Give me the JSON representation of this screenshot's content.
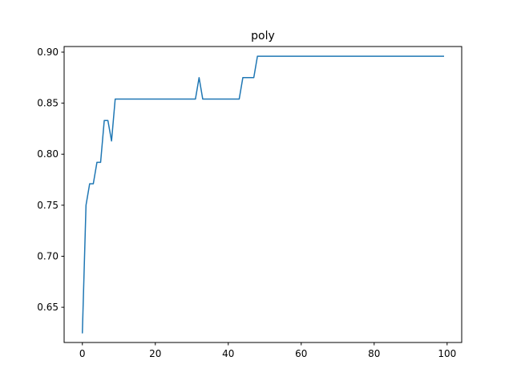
{
  "chart_data": {
    "type": "line",
    "title": "poly",
    "xlabel": "",
    "ylabel": "",
    "xlim": [
      -5,
      104
    ],
    "ylim": [
      0.6155,
      0.9055
    ],
    "xticks": [
      0,
      20,
      40,
      60,
      80,
      100
    ],
    "yticks": [
      0.65,
      0.7,
      0.75,
      0.8,
      0.85,
      0.9
    ],
    "xtick_labels": [
      "0",
      "20",
      "40",
      "60",
      "80",
      "100"
    ],
    "ytick_labels": [
      "0.65",
      "0.70",
      "0.75",
      "0.80",
      "0.85",
      "0.90"
    ],
    "grid": false,
    "series": [
      {
        "color": "#1f77b4",
        "x": [
          0,
          1,
          2,
          3,
          4,
          5,
          6,
          7,
          8,
          9,
          10,
          11,
          12,
          13,
          14,
          15,
          16,
          17,
          18,
          19,
          20,
          21,
          22,
          23,
          24,
          25,
          26,
          27,
          28,
          29,
          30,
          31,
          32,
          33,
          34,
          35,
          36,
          37,
          38,
          39,
          40,
          41,
          42,
          43,
          44,
          45,
          46,
          47,
          48,
          49,
          50,
          51,
          52,
          53,
          54,
          55,
          56,
          57,
          58,
          59,
          60,
          61,
          62,
          63,
          64,
          65,
          66,
          67,
          68,
          69,
          70,
          71,
          72,
          73,
          74,
          75,
          76,
          77,
          78,
          79,
          80,
          81,
          82,
          83,
          84,
          85,
          86,
          87,
          88,
          89,
          90,
          91,
          92,
          93,
          94,
          95,
          96,
          97,
          98,
          99
        ],
        "y": [
          0.625,
          0.75,
          0.771,
          0.771,
          0.792,
          0.792,
          0.833,
          0.833,
          0.813,
          0.854,
          0.854,
          0.854,
          0.854,
          0.854,
          0.854,
          0.854,
          0.854,
          0.854,
          0.854,
          0.854,
          0.854,
          0.854,
          0.854,
          0.854,
          0.854,
          0.854,
          0.854,
          0.854,
          0.854,
          0.854,
          0.854,
          0.854,
          0.875,
          0.854,
          0.854,
          0.854,
          0.854,
          0.854,
          0.854,
          0.854,
          0.854,
          0.854,
          0.854,
          0.854,
          0.875,
          0.875,
          0.875,
          0.875,
          0.896,
          0.896,
          0.896,
          0.896,
          0.896,
          0.896,
          0.896,
          0.896,
          0.896,
          0.896,
          0.896,
          0.896,
          0.896,
          0.896,
          0.896,
          0.896,
          0.896,
          0.896,
          0.896,
          0.896,
          0.896,
          0.896,
          0.896,
          0.896,
          0.896,
          0.896,
          0.896,
          0.896,
          0.896,
          0.896,
          0.896,
          0.896,
          0.896,
          0.896,
          0.896,
          0.896,
          0.896,
          0.896,
          0.896,
          0.896,
          0.896,
          0.896,
          0.896,
          0.896,
          0.896,
          0.896,
          0.896,
          0.896,
          0.896,
          0.896,
          0.896,
          0.896
        ]
      }
    ]
  }
}
